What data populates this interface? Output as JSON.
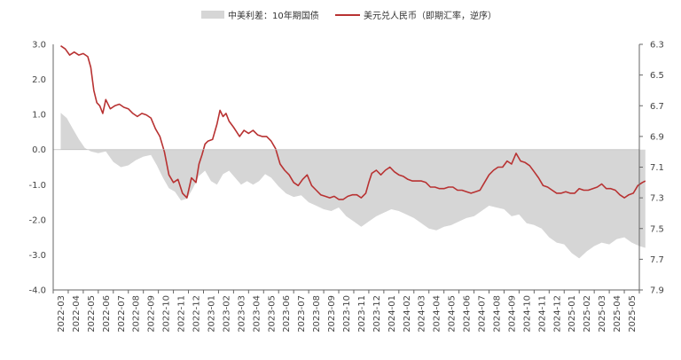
{
  "chart_data": {
    "type": "line",
    "legend": {
      "position": "top-center",
      "area_label": "中美利差：10年期国债",
      "line_label": "美元兑人民币（即期汇率，逆序）"
    },
    "colors": {
      "spread": "#d6d6d6",
      "usdcny": "#b83232",
      "axis": "#666666",
      "text": "#444444"
    },
    "x_categories": [
      "2022-03",
      "2022-04",
      "2022-05",
      "2022-06",
      "2022-07",
      "2022-08",
      "2022-09",
      "2022-10",
      "2022-11",
      "2022-12",
      "2023-01",
      "2023-02",
      "2023-03",
      "2023-04",
      "2023-05",
      "2023-06",
      "2023-07",
      "2023-08",
      "2023-09",
      "2023-10",
      "2023-11",
      "2023-12",
      "2024-01",
      "2024-02",
      "2024-03",
      "2024-04",
      "2024-05",
      "2024-06",
      "2024-07",
      "2024-08",
      "2024-09",
      "2024-10",
      "2024-11",
      "2024-12",
      "2025-01",
      "2025-02",
      "2025-03",
      "2025-04",
      "2025-05"
    ],
    "left_axis": {
      "range": [
        -4.0,
        3.0
      ],
      "ticks": [
        "3.0",
        "2.0",
        "1.0",
        "0.0",
        "-1.0",
        "-2.0",
        "-3.0",
        "-4.0"
      ]
    },
    "right_axis": {
      "range": [
        6.3,
        7.9
      ],
      "inverted": true,
      "ticks": [
        "6.3",
        "6.5",
        "6.7",
        "6.9",
        "7.1",
        "7.3",
        "7.5",
        "7.7",
        "7.9"
      ]
    },
    "series": [
      {
        "name": "中美利差：10年期国债",
        "axis": "left",
        "kind": "area",
        "points": [
          [
            0.0,
            1.05
          ],
          [
            0.4,
            0.9
          ],
          [
            0.8,
            0.6
          ],
          [
            1.2,
            0.3
          ],
          [
            1.6,
            0.05
          ],
          [
            2.0,
            -0.05
          ],
          [
            2.5,
            -0.1
          ],
          [
            3.0,
            -0.05
          ],
          [
            3.5,
            -0.35
          ],
          [
            4.0,
            -0.5
          ],
          [
            4.5,
            -0.45
          ],
          [
            5.0,
            -0.3
          ],
          [
            5.5,
            -0.2
          ],
          [
            6.0,
            -0.15
          ],
          [
            6.4,
            -0.45
          ],
          [
            6.8,
            -0.8
          ],
          [
            7.2,
            -1.1
          ],
          [
            7.6,
            -1.2
          ],
          [
            8.0,
            -1.45
          ],
          [
            8.4,
            -1.4
          ],
          [
            8.8,
            -1.1
          ],
          [
            9.2,
            -0.75
          ],
          [
            9.6,
            -0.6
          ],
          [
            10.0,
            -0.9
          ],
          [
            10.4,
            -1.0
          ],
          [
            10.8,
            -0.7
          ],
          [
            11.2,
            -0.6
          ],
          [
            11.6,
            -0.8
          ],
          [
            12.0,
            -1.0
          ],
          [
            12.4,
            -0.9
          ],
          [
            12.8,
            -1.0
          ],
          [
            13.2,
            -0.9
          ],
          [
            13.6,
            -0.7
          ],
          [
            14.0,
            -0.8
          ],
          [
            14.5,
            -1.05
          ],
          [
            15.0,
            -1.25
          ],
          [
            15.5,
            -1.35
          ],
          [
            16.0,
            -1.3
          ],
          [
            16.5,
            -1.5
          ],
          [
            17.0,
            -1.6
          ],
          [
            17.5,
            -1.7
          ],
          [
            18.0,
            -1.75
          ],
          [
            18.5,
            -1.65
          ],
          [
            19.0,
            -1.9
          ],
          [
            19.5,
            -2.05
          ],
          [
            20.0,
            -2.2
          ],
          [
            20.5,
            -2.05
          ],
          [
            21.0,
            -1.9
          ],
          [
            21.5,
            -1.8
          ],
          [
            22.0,
            -1.7
          ],
          [
            22.5,
            -1.75
          ],
          [
            23.0,
            -1.85
          ],
          [
            23.5,
            -1.95
          ],
          [
            24.0,
            -2.1
          ],
          [
            24.5,
            -2.25
          ],
          [
            25.0,
            -2.3
          ],
          [
            25.5,
            -2.2
          ],
          [
            26.0,
            -2.15
          ],
          [
            26.5,
            -2.05
          ],
          [
            27.0,
            -1.95
          ],
          [
            27.5,
            -1.9
          ],
          [
            28.0,
            -1.75
          ],
          [
            28.5,
            -1.6
          ],
          [
            29.0,
            -1.65
          ],
          [
            29.5,
            -1.7
          ],
          [
            30.0,
            -1.9
          ],
          [
            30.5,
            -1.85
          ],
          [
            31.0,
            -2.1
          ],
          [
            31.5,
            -2.15
          ],
          [
            32.0,
            -2.25
          ],
          [
            32.5,
            -2.5
          ],
          [
            33.0,
            -2.65
          ],
          [
            33.5,
            -2.7
          ],
          [
            34.0,
            -2.95
          ],
          [
            34.5,
            -3.1
          ],
          [
            35.0,
            -2.9
          ],
          [
            35.5,
            -2.75
          ],
          [
            36.0,
            -2.65
          ],
          [
            36.5,
            -2.7
          ],
          [
            37.0,
            -2.55
          ],
          [
            37.5,
            -2.5
          ],
          [
            38.0,
            -2.65
          ],
          [
            38.5,
            -2.75
          ],
          [
            38.9,
            -2.8
          ]
        ]
      },
      {
        "name": "美元兑人民币（即期汇率，逆序）",
        "axis": "right",
        "kind": "line",
        "points": [
          [
            0.0,
            6.31
          ],
          [
            0.3,
            6.33
          ],
          [
            0.6,
            6.37
          ],
          [
            0.9,
            6.35
          ],
          [
            1.2,
            6.37
          ],
          [
            1.5,
            6.36
          ],
          [
            1.8,
            6.38
          ],
          [
            2.0,
            6.45
          ],
          [
            2.2,
            6.6
          ],
          [
            2.4,
            6.68
          ],
          [
            2.6,
            6.7
          ],
          [
            2.8,
            6.75
          ],
          [
            3.0,
            6.66
          ],
          [
            3.3,
            6.72
          ],
          [
            3.6,
            6.7
          ],
          [
            3.9,
            6.69
          ],
          [
            4.2,
            6.71
          ],
          [
            4.5,
            6.72
          ],
          [
            4.8,
            6.75
          ],
          [
            5.1,
            6.77
          ],
          [
            5.4,
            6.75
          ],
          [
            5.7,
            6.76
          ],
          [
            6.0,
            6.78
          ],
          [
            6.3,
            6.85
          ],
          [
            6.6,
            6.9
          ],
          [
            6.9,
            7.0
          ],
          [
            7.2,
            7.15
          ],
          [
            7.5,
            7.2
          ],
          [
            7.8,
            7.18
          ],
          [
            8.1,
            7.27
          ],
          [
            8.4,
            7.3
          ],
          [
            8.7,
            7.17
          ],
          [
            9.0,
            7.2
          ],
          [
            9.2,
            7.08
          ],
          [
            9.4,
            7.02
          ],
          [
            9.6,
            6.95
          ],
          [
            9.8,
            6.93
          ],
          [
            10.1,
            6.92
          ],
          [
            10.4,
            6.82
          ],
          [
            10.6,
            6.73
          ],
          [
            10.8,
            6.77
          ],
          [
            11.0,
            6.75
          ],
          [
            11.2,
            6.8
          ],
          [
            11.5,
            6.84
          ],
          [
            11.7,
            6.87
          ],
          [
            11.9,
            6.9
          ],
          [
            12.2,
            6.86
          ],
          [
            12.5,
            6.88
          ],
          [
            12.8,
            6.86
          ],
          [
            13.1,
            6.89
          ],
          [
            13.4,
            6.9
          ],
          [
            13.7,
            6.9
          ],
          [
            14.0,
            6.93
          ],
          [
            14.3,
            6.98
          ],
          [
            14.6,
            7.08
          ],
          [
            14.9,
            7.12
          ],
          [
            15.2,
            7.15
          ],
          [
            15.5,
            7.2
          ],
          [
            15.8,
            7.22
          ],
          [
            16.1,
            7.18
          ],
          [
            16.4,
            7.15
          ],
          [
            16.7,
            7.22
          ],
          [
            17.0,
            7.25
          ],
          [
            17.3,
            7.28
          ],
          [
            17.6,
            7.29
          ],
          [
            17.9,
            7.3
          ],
          [
            18.2,
            7.29
          ],
          [
            18.5,
            7.31
          ],
          [
            18.8,
            7.31
          ],
          [
            19.1,
            7.29
          ],
          [
            19.4,
            7.28
          ],
          [
            19.7,
            7.28
          ],
          [
            20.0,
            7.3
          ],
          [
            20.3,
            7.27
          ],
          [
            20.5,
            7.2
          ],
          [
            20.7,
            7.14
          ],
          [
            21.0,
            7.12
          ],
          [
            21.3,
            7.15
          ],
          [
            21.6,
            7.12
          ],
          [
            21.9,
            7.1
          ],
          [
            22.2,
            7.13
          ],
          [
            22.5,
            7.15
          ],
          [
            22.8,
            7.16
          ],
          [
            23.1,
            7.18
          ],
          [
            23.4,
            7.19
          ],
          [
            23.7,
            7.19
          ],
          [
            24.0,
            7.19
          ],
          [
            24.3,
            7.2
          ],
          [
            24.6,
            7.23
          ],
          [
            24.9,
            7.23
          ],
          [
            25.2,
            7.24
          ],
          [
            25.5,
            7.24
          ],
          [
            25.8,
            7.23
          ],
          [
            26.1,
            7.23
          ],
          [
            26.4,
            7.25
          ],
          [
            26.7,
            7.25
          ],
          [
            27.0,
            7.26
          ],
          [
            27.3,
            7.27
          ],
          [
            27.6,
            7.26
          ],
          [
            27.9,
            7.25
          ],
          [
            28.2,
            7.2
          ],
          [
            28.5,
            7.15
          ],
          [
            28.8,
            7.12
          ],
          [
            29.1,
            7.1
          ],
          [
            29.4,
            7.1
          ],
          [
            29.7,
            7.06
          ],
          [
            30.0,
            7.08
          ],
          [
            30.3,
            7.01
          ],
          [
            30.6,
            7.06
          ],
          [
            30.9,
            7.07
          ],
          [
            31.2,
            7.09
          ],
          [
            31.5,
            7.13
          ],
          [
            31.8,
            7.17
          ],
          [
            32.1,
            7.22
          ],
          [
            32.4,
            7.23
          ],
          [
            32.7,
            7.25
          ],
          [
            33.0,
            7.27
          ],
          [
            33.3,
            7.27
          ],
          [
            33.6,
            7.26
          ],
          [
            33.9,
            7.27
          ],
          [
            34.2,
            7.27
          ],
          [
            34.5,
            7.24
          ],
          [
            34.8,
            7.25
          ],
          [
            35.1,
            7.25
          ],
          [
            35.4,
            7.24
          ],
          [
            35.7,
            7.23
          ],
          [
            36.0,
            7.21
          ],
          [
            36.3,
            7.24
          ],
          [
            36.6,
            7.24
          ],
          [
            36.9,
            7.25
          ],
          [
            37.2,
            7.28
          ],
          [
            37.5,
            7.3
          ],
          [
            37.8,
            7.28
          ],
          [
            38.1,
            7.27
          ],
          [
            38.4,
            7.22
          ],
          [
            38.7,
            7.2
          ],
          [
            38.9,
            7.19
          ]
        ]
      }
    ]
  }
}
